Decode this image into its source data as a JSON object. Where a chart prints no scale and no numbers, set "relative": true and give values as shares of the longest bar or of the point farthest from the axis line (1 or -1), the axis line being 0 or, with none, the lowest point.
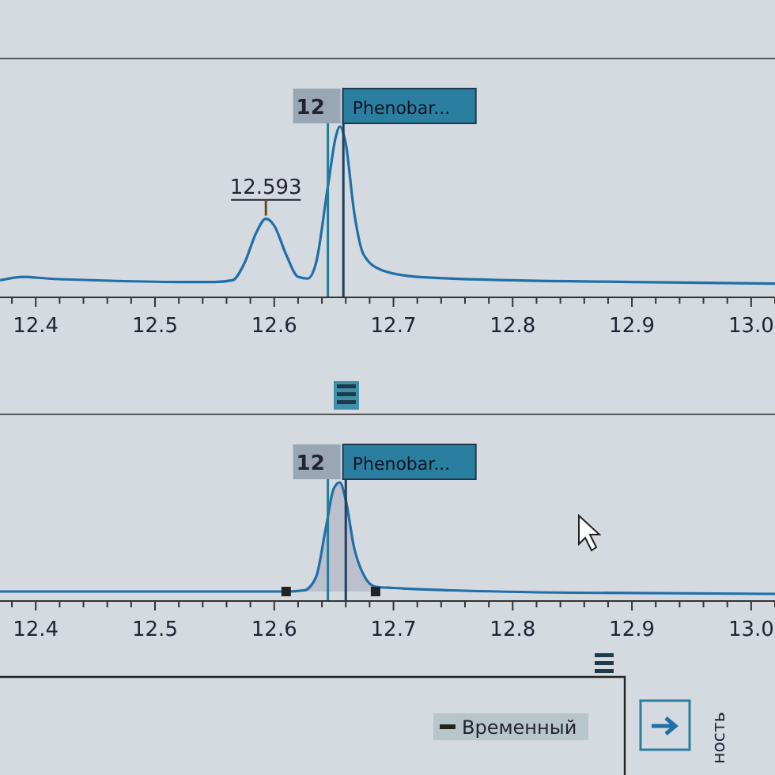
{
  "chart_data": [
    {
      "type": "line",
      "relative": true,
      "tick_labels": "x",
      "grid": false,
      "xlim": [
        12.37,
        13.02
      ],
      "xticks": [
        {
          "value": 12.4,
          "label": "12.4"
        },
        {
          "value": 12.5,
          "label": "12.5"
        },
        {
          "value": 12.6,
          "label": "12.6"
        },
        {
          "value": 12.7,
          "label": "12.7"
        },
        {
          "value": 12.8,
          "label": "12.8"
        },
        {
          "value": 12.9,
          "label": "12.9"
        },
        {
          "value": 13.0,
          "label": "13.0"
        }
      ],
      "series": [
        {
          "color": "#1f6fa8",
          "x": [
            12.37,
            12.39,
            12.41,
            12.45,
            12.52,
            12.55,
            12.565,
            12.575,
            12.585,
            12.593,
            12.6,
            12.61,
            12.62,
            12.628,
            12.635,
            12.645,
            12.652,
            12.655,
            12.66,
            12.667,
            12.675,
            12.69,
            12.72,
            12.8,
            12.9,
            13.02
          ],
          "values": [
            0.1,
            0.12,
            0.11,
            0.1,
            0.09,
            0.09,
            0.1,
            0.2,
            0.38,
            0.46,
            0.42,
            0.25,
            0.12,
            0.11,
            0.2,
            0.65,
            0.95,
            1.0,
            0.9,
            0.5,
            0.25,
            0.16,
            0.12,
            0.1,
            0.09,
            0.08
          ]
        }
      ],
      "ref_lines": [
        {
          "axis": "x",
          "value": 12.645,
          "color": "#1f7f9a"
        },
        {
          "axis": "x",
          "value": 12.658,
          "color": "#1f3f5a"
        }
      ],
      "annotations": [
        {
          "text": "12.593",
          "x": 12.593,
          "y": 0.46
        },
        {
          "text": "12",
          "x": 12.645,
          "y": 1.0
        },
        {
          "text": "Phenobar...",
          "x": 12.655,
          "y": 1.0
        }
      ]
    },
    {
      "type": "line",
      "relative": true,
      "tick_labels": "x",
      "grid": false,
      "xlim": [
        12.37,
        13.02
      ],
      "xticks": [
        {
          "value": 12.4,
          "label": "12.4"
        },
        {
          "value": 12.5,
          "label": "12.5"
        },
        {
          "value": 12.6,
          "label": "12.6"
        },
        {
          "value": 12.7,
          "label": "12.7"
        },
        {
          "value": 12.8,
          "label": "12.8"
        },
        {
          "value": 12.9,
          "label": "12.9"
        },
        {
          "value": 13.0,
          "label": "13.0"
        }
      ],
      "series": [
        {
          "color": "#1f6fa8",
          "x": [
            12.37,
            12.5,
            12.61,
            12.625,
            12.635,
            12.643,
            12.65,
            12.655,
            12.66,
            12.667,
            12.675,
            12.685,
            12.7,
            12.75,
            12.85,
            13.02
          ],
          "values": [
            0.08,
            0.08,
            0.08,
            0.09,
            0.2,
            0.6,
            0.95,
            1.0,
            0.85,
            0.45,
            0.22,
            0.12,
            0.11,
            0.09,
            0.07,
            0.06
          ]
        },
        {
          "type": "area",
          "color": "#b9bccb",
          "x": [
            12.61,
            12.625,
            12.635,
            12.643,
            12.65,
            12.655,
            12.66,
            12.667,
            12.675,
            12.685
          ],
          "values": [
            0.08,
            0.09,
            0.2,
            0.6,
            0.95,
            1.0,
            0.85,
            0.45,
            0.22,
            0.12
          ]
        },
        {
          "type": "scatter",
          "marker": "square",
          "color": "#222222",
          "x": [
            12.61,
            12.685
          ],
          "values": [
            0.08,
            0.08
          ]
        }
      ],
      "ref_lines": [
        {
          "axis": "x",
          "value": 12.645,
          "color": "#1f7f9a"
        },
        {
          "axis": "x",
          "value": 12.66,
          "color": "#1f3f5a"
        }
      ],
      "annotations": [
        {
          "text": "12",
          "x": 12.645,
          "y": 1.0
        },
        {
          "text": "Phenobar...",
          "x": 12.655,
          "y": 1.0
        }
      ]
    },
    {
      "type": "other",
      "annotations": [
        "Временный",
        "ность"
      ]
    }
  ]
}
